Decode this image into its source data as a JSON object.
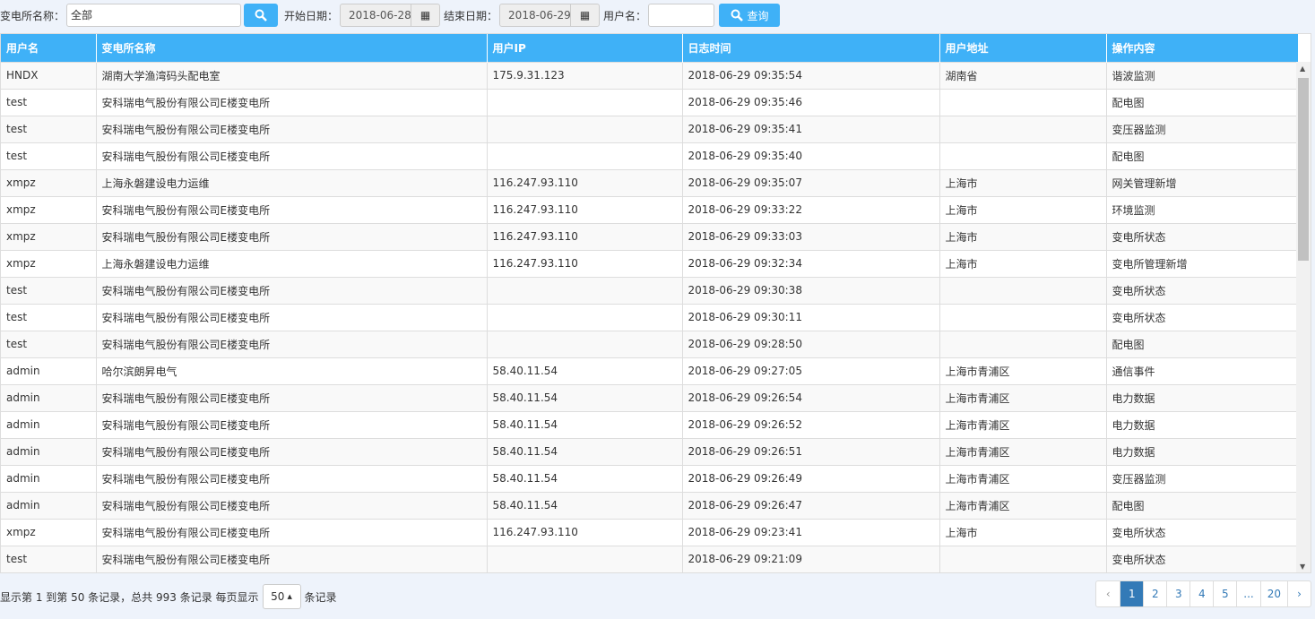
{
  "filters": {
    "station_label": "变电所名称：",
    "station_value": "全部",
    "start_label": "开始日期：",
    "start_value": "2018-06-28",
    "end_label": "结束日期：",
    "end_value": "2018-06-29",
    "user_label": "用户名：",
    "user_value": "",
    "query_label": "查询"
  },
  "table": {
    "headers": [
      "用户名",
      "变电所名称",
      "用户IP",
      "日志时间",
      "用户地址",
      "操作内容"
    ],
    "rows": [
      [
        "HNDX",
        "湖南大学渔湾码头配电室",
        "175.9.31.123",
        "2018-06-29 09:35:54",
        "湖南省",
        "谐波监测"
      ],
      [
        "test",
        "安科瑞电气股份有限公司E楼变电所",
        "",
        "2018-06-29 09:35:46",
        "",
        "配电图"
      ],
      [
        "test",
        "安科瑞电气股份有限公司E楼变电所",
        "",
        "2018-06-29 09:35:41",
        "",
        "变压器监测"
      ],
      [
        "test",
        "安科瑞电气股份有限公司E楼变电所",
        "",
        "2018-06-29 09:35:40",
        "",
        "配电图"
      ],
      [
        "xmpz",
        "上海永磐建设电力运维",
        "116.247.93.110",
        "2018-06-29 09:35:07",
        "上海市",
        "网关管理新增"
      ],
      [
        "xmpz",
        "安科瑞电气股份有限公司E楼变电所",
        "116.247.93.110",
        "2018-06-29 09:33:22",
        "上海市",
        "环境监测"
      ],
      [
        "xmpz",
        "安科瑞电气股份有限公司E楼变电所",
        "116.247.93.110",
        "2018-06-29 09:33:03",
        "上海市",
        "变电所状态"
      ],
      [
        "xmpz",
        "上海永磐建设电力运维",
        "116.247.93.110",
        "2018-06-29 09:32:34",
        "上海市",
        "变电所管理新增"
      ],
      [
        "test",
        "安科瑞电气股份有限公司E楼变电所",
        "",
        "2018-06-29 09:30:38",
        "",
        "变电所状态"
      ],
      [
        "test",
        "安科瑞电气股份有限公司E楼变电所",
        "",
        "2018-06-29 09:30:11",
        "",
        "变电所状态"
      ],
      [
        "test",
        "安科瑞电气股份有限公司E楼变电所",
        "",
        "2018-06-29 09:28:50",
        "",
        "配电图"
      ],
      [
        "admin",
        "哈尔滨朗昇电气",
        "58.40.11.54",
        "2018-06-29 09:27:05",
        "上海市青浦区",
        "通信事件"
      ],
      [
        "admin",
        "安科瑞电气股份有限公司E楼变电所",
        "58.40.11.54",
        "2018-06-29 09:26:54",
        "上海市青浦区",
        "电力数据"
      ],
      [
        "admin",
        "安科瑞电气股份有限公司E楼变电所",
        "58.40.11.54",
        "2018-06-29 09:26:52",
        "上海市青浦区",
        "电力数据"
      ],
      [
        "admin",
        "安科瑞电气股份有限公司E楼变电所",
        "58.40.11.54",
        "2018-06-29 09:26:51",
        "上海市青浦区",
        "电力数据"
      ],
      [
        "admin",
        "安科瑞电气股份有限公司E楼变电所",
        "58.40.11.54",
        "2018-06-29 09:26:49",
        "上海市青浦区",
        "变压器监测"
      ],
      [
        "admin",
        "安科瑞电气股份有限公司E楼变电所",
        "58.40.11.54",
        "2018-06-29 09:26:47",
        "上海市青浦区",
        "配电图"
      ],
      [
        "xmpz",
        "安科瑞电气股份有限公司E楼变电所",
        "116.247.93.110",
        "2018-06-29 09:23:41",
        "上海市",
        "变电所状态"
      ],
      [
        "test",
        "安科瑞电气股份有限公司E楼变电所",
        "",
        "2018-06-29 09:21:09",
        "",
        "变电所状态"
      ]
    ]
  },
  "footer": {
    "info": "显示第 1 到第 50 条记录，总共 993 条记录 每页显示",
    "page_size": "50",
    "suffix": "条记录"
  },
  "pagination": {
    "prev": "‹",
    "pages": [
      "1",
      "2",
      "3",
      "4",
      "5",
      "...",
      "20"
    ],
    "next": "›",
    "active": "1"
  },
  "colors": {
    "accent": "#3fb1f7",
    "active_page": "#337ab7"
  }
}
